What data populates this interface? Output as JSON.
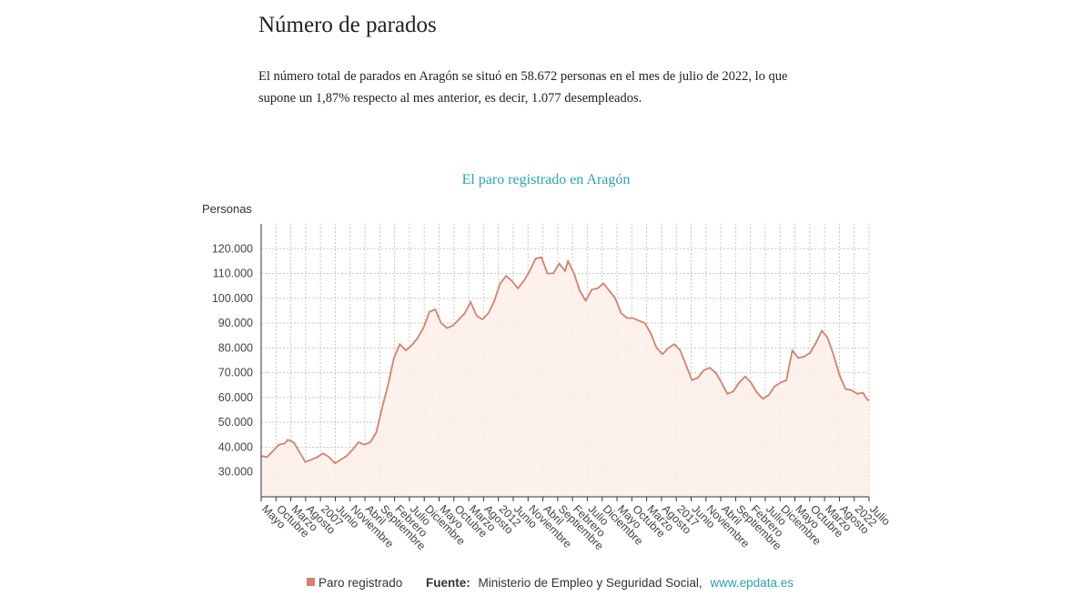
{
  "header": {
    "title": "Número de parados",
    "lead": "El número total de parados en Aragón se situó en 58.672 personas en el mes de julio de 2022, lo que supone un 1,87% respecto al mes anterior, es decir, 1.077 desempleados."
  },
  "colors": {
    "line": "#d4826a",
    "fill": "#fdeeea",
    "accent": "#2aa3b1",
    "grid": "#c8c8c8"
  },
  "chart_data": {
    "type": "area",
    "title": "El paro registrado en Aragón",
    "ylabel": "Personas",
    "xlabel": "",
    "ylim": [
      20000,
      130000
    ],
    "yticks": [
      30000,
      40000,
      50000,
      60000,
      70000,
      80000,
      90000,
      100000,
      110000,
      120000
    ],
    "ytick_labels": [
      "30.000",
      "40.000",
      "50.000",
      "60.000",
      "70.000",
      "80.000",
      "90.000",
      "100.000",
      "110.000",
      "120.000"
    ],
    "grid": true,
    "x_labels": [
      "Mayo",
      "Octubre",
      "Marzo",
      "Agosto",
      "2007",
      "Junio",
      "Noviembre",
      "Abril",
      "Septiembre",
      "Febrero",
      "Julio",
      "Diciembre",
      "Mayo",
      "Octubre",
      "Marzo",
      "Agosto",
      "2012",
      "Junio",
      "Noviembre",
      "Abril",
      "Septiembre",
      "Febrero",
      "Julio",
      "Diciembre",
      "Mayo",
      "Octubre",
      "Marzo",
      "Agosto",
      "2017",
      "Junio",
      "Noviembre",
      "Abril",
      "Septiembre",
      "Febrero",
      "Julio",
      "Diciembre",
      "Mayo",
      "Octubre",
      "Marzo",
      "Agosto",
      "2022",
      "Julio"
    ],
    "x_start": "2005-05",
    "x_end": "2022-07",
    "series": [
      {
        "name": "Paro registrado",
        "values": [
          {
            "x": "2005-05",
            "y": 36500
          },
          {
            "x": "2005-07",
            "y": 36000
          },
          {
            "x": "2005-09",
            "y": 38500
          },
          {
            "x": "2005-11",
            "y": 41000
          },
          {
            "x": "2006-01",
            "y": 41500
          },
          {
            "x": "2006-02",
            "y": 43000
          },
          {
            "x": "2006-04",
            "y": 42000
          },
          {
            "x": "2006-06",
            "y": 38000
          },
          {
            "x": "2006-08",
            "y": 34000
          },
          {
            "x": "2006-10",
            "y": 35000
          },
          {
            "x": "2006-12",
            "y": 36000
          },
          {
            "x": "2007-02",
            "y": 37500
          },
          {
            "x": "2007-04",
            "y": 36000
          },
          {
            "x": "2007-06",
            "y": 33500
          },
          {
            "x": "2007-08",
            "y": 35000
          },
          {
            "x": "2007-10",
            "y": 36500
          },
          {
            "x": "2007-12",
            "y": 39000
          },
          {
            "x": "2008-02",
            "y": 42000
          },
          {
            "x": "2008-04",
            "y": 41000
          },
          {
            "x": "2008-06",
            "y": 42000
          },
          {
            "x": "2008-08",
            "y": 46000
          },
          {
            "x": "2008-10",
            "y": 56000
          },
          {
            "x": "2008-12",
            "y": 65000
          },
          {
            "x": "2009-02",
            "y": 76000
          },
          {
            "x": "2009-04",
            "y": 81500
          },
          {
            "x": "2009-06",
            "y": 79000
          },
          {
            "x": "2009-08",
            "y": 81000
          },
          {
            "x": "2009-10",
            "y": 84000
          },
          {
            "x": "2009-12",
            "y": 88000
          },
          {
            "x": "2010-02",
            "y": 94500
          },
          {
            "x": "2010-04",
            "y": 95500
          },
          {
            "x": "2010-06",
            "y": 90000
          },
          {
            "x": "2010-08",
            "y": 88000
          },
          {
            "x": "2010-10",
            "y": 89000
          },
          {
            "x": "2010-12",
            "y": 91500
          },
          {
            "x": "2011-02",
            "y": 94000
          },
          {
            "x": "2011-04",
            "y": 98500
          },
          {
            "x": "2011-06",
            "y": 93000
          },
          {
            "x": "2011-08",
            "y": 91500
          },
          {
            "x": "2011-10",
            "y": 94000
          },
          {
            "x": "2011-12",
            "y": 99000
          },
          {
            "x": "2012-02",
            "y": 106000
          },
          {
            "x": "2012-04",
            "y": 109000
          },
          {
            "x": "2012-06",
            "y": 107000
          },
          {
            "x": "2012-08",
            "y": 104000
          },
          {
            "x": "2012-10",
            "y": 107000
          },
          {
            "x": "2012-12",
            "y": 111000
          },
          {
            "x": "2013-02",
            "y": 116000
          },
          {
            "x": "2013-04",
            "y": 116500
          },
          {
            "x": "2013-06",
            "y": 110000
          },
          {
            "x": "2013-08",
            "y": 110000
          },
          {
            "x": "2013-10",
            "y": 114000
          },
          {
            "x": "2013-12",
            "y": 111000
          },
          {
            "x": "2014-01",
            "y": 115000
          },
          {
            "x": "2014-03",
            "y": 110000
          },
          {
            "x": "2014-05",
            "y": 103000
          },
          {
            "x": "2014-07",
            "y": 99000
          },
          {
            "x": "2014-09",
            "y": 103500
          },
          {
            "x": "2014-11",
            "y": 104000
          },
          {
            "x": "2015-01",
            "y": 106000
          },
          {
            "x": "2015-03",
            "y": 103000
          },
          {
            "x": "2015-05",
            "y": 100000
          },
          {
            "x": "2015-07",
            "y": 94000
          },
          {
            "x": "2015-09",
            "y": 92000
          },
          {
            "x": "2015-11",
            "y": 92000
          },
          {
            "x": "2016-01",
            "y": 91000
          },
          {
            "x": "2016-03",
            "y": 90000
          },
          {
            "x": "2016-05",
            "y": 86000
          },
          {
            "x": "2016-07",
            "y": 80000
          },
          {
            "x": "2016-09",
            "y": 77500
          },
          {
            "x": "2016-11",
            "y": 80000
          },
          {
            "x": "2017-01",
            "y": 81500
          },
          {
            "x": "2017-03",
            "y": 79000
          },
          {
            "x": "2017-05",
            "y": 73000
          },
          {
            "x": "2017-07",
            "y": 67000
          },
          {
            "x": "2017-09",
            "y": 68000
          },
          {
            "x": "2017-11",
            "y": 71000
          },
          {
            "x": "2018-01",
            "y": 72000
          },
          {
            "x": "2018-03",
            "y": 70000
          },
          {
            "x": "2018-05",
            "y": 66000
          },
          {
            "x": "2018-07",
            "y": 61500
          },
          {
            "x": "2018-09",
            "y": 62500
          },
          {
            "x": "2018-11",
            "y": 66000
          },
          {
            "x": "2019-01",
            "y": 68500
          },
          {
            "x": "2019-03",
            "y": 66000
          },
          {
            "x": "2019-05",
            "y": 62000
          },
          {
            "x": "2019-07",
            "y": 59500
          },
          {
            "x": "2019-09",
            "y": 61000
          },
          {
            "x": "2019-11",
            "y": 64500
          },
          {
            "x": "2020-01",
            "y": 66000
          },
          {
            "x": "2020-03",
            "y": 67000
          },
          {
            "x": "2020-05",
            "y": 79000
          },
          {
            "x": "2020-07",
            "y": 76000
          },
          {
            "x": "2020-09",
            "y": 76500
          },
          {
            "x": "2020-11",
            "y": 78000
          },
          {
            "x": "2021-01",
            "y": 82000
          },
          {
            "x": "2021-03",
            "y": 87000
          },
          {
            "x": "2021-05",
            "y": 84000
          },
          {
            "x": "2021-07",
            "y": 77000
          },
          {
            "x": "2021-09",
            "y": 69000
          },
          {
            "x": "2021-11",
            "y": 63500
          },
          {
            "x": "2022-01",
            "y": 63000
          },
          {
            "x": "2022-03",
            "y": 61500
          },
          {
            "x": "2022-05",
            "y": 62000
          },
          {
            "x": "2022-06",
            "y": 59750
          },
          {
            "x": "2022-07",
            "y": 58672
          }
        ]
      }
    ]
  },
  "legend": {
    "label": "Paro registrado"
  },
  "source": {
    "label": "Fuente:",
    "text": "Ministerio de Empleo y Seguridad Social,",
    "link": "www.epdata.es"
  }
}
